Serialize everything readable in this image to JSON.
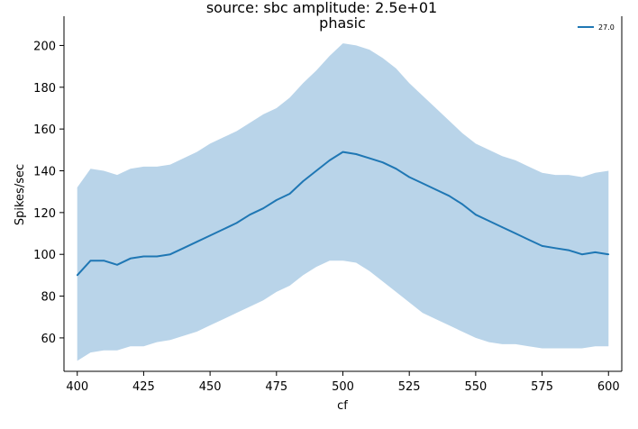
{
  "chart_data": {
    "type": "line",
    "title": "source: sbc amplitude: 2.5e+01",
    "subtitle": "phasic",
    "xlabel": "cf",
    "ylabel": "Spikes/sec",
    "xlim": [
      395,
      605
    ],
    "ylim": [
      44,
      214
    ],
    "xticks": [
      400,
      425,
      450,
      475,
      500,
      525,
      550,
      575,
      600
    ],
    "yticks": [
      60,
      80,
      100,
      120,
      140,
      160,
      180,
      200
    ],
    "grid": false,
    "legend_position": "top-right",
    "colors": {
      "line": "#1f77b4",
      "band": "#b9d4e9",
      "axis": "#000000"
    },
    "series": [
      {
        "name": "27.0",
        "x": [
          400,
          405,
          410,
          415,
          420,
          425,
          430,
          435,
          440,
          445,
          450,
          455,
          460,
          465,
          470,
          475,
          480,
          485,
          490,
          495,
          500,
          505,
          510,
          515,
          520,
          525,
          530,
          535,
          540,
          545,
          550,
          555,
          560,
          565,
          570,
          575,
          580,
          585,
          590,
          595,
          600
        ],
        "y": [
          90,
          97,
          97,
          95,
          98,
          99,
          99,
          100,
          103,
          106,
          109,
          112,
          115,
          119,
          122,
          126,
          129,
          135,
          140,
          145,
          149,
          148,
          146,
          144,
          141,
          137,
          134,
          131,
          128,
          124,
          119,
          116,
          113,
          110,
          107,
          104,
          103,
          102,
          100,
          101,
          100
        ],
        "lower": [
          49,
          53,
          54,
          54,
          56,
          56,
          58,
          59,
          61,
          63,
          66,
          69,
          72,
          75,
          78,
          82,
          85,
          90,
          94,
          97,
          97,
          96,
          92,
          87,
          82,
          77,
          72,
          69,
          66,
          63,
          60,
          58,
          57,
          57,
          56,
          55,
          55,
          55,
          55,
          56,
          56
        ],
        "upper": [
          132,
          141,
          140,
          138,
          141,
          142,
          142,
          143,
          146,
          149,
          153,
          156,
          159,
          163,
          167,
          170,
          175,
          182,
          188,
          195,
          201,
          200,
          198,
          194,
          189,
          182,
          176,
          170,
          164,
          158,
          153,
          150,
          147,
          145,
          142,
          139,
          138,
          138,
          137,
          139,
          140
        ]
      }
    ]
  }
}
